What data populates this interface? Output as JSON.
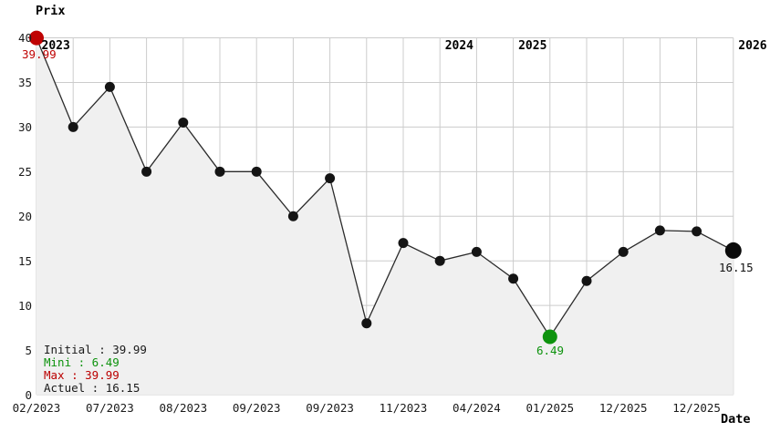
{
  "chart_data": {
    "type": "line",
    "title": "Prix",
    "xlabel": "Date",
    "ylabel": "Prix",
    "ylim": [
      0,
      40
    ],
    "y_ticks": [
      0,
      5,
      10,
      15,
      20,
      25,
      30,
      35,
      40
    ],
    "grid": true,
    "x_tick_labels": [
      {
        "index": 0,
        "label": "02/2023"
      },
      {
        "index": 2,
        "label": "07/2023"
      },
      {
        "index": 4,
        "label": "08/2023"
      },
      {
        "index": 6,
        "label": "09/2023"
      },
      {
        "index": 8,
        "label": "09/2023"
      },
      {
        "index": 10,
        "label": "11/2023"
      },
      {
        "index": 12,
        "label": "04/2024"
      },
      {
        "index": 14,
        "label": "01/2025"
      },
      {
        "index": 16,
        "label": "12/2025"
      },
      {
        "index": 18,
        "label": "12/2025"
      }
    ],
    "year_labels": [
      {
        "index": 0,
        "label": "2023"
      },
      {
        "index": 11,
        "label": "2024"
      },
      {
        "index": 13,
        "label": "2025"
      },
      {
        "index": 19,
        "label": "2026"
      }
    ],
    "values": [
      39.99,
      30,
      34.5,
      25,
      30.5,
      25,
      25,
      20,
      24.25,
      8,
      17,
      15,
      16,
      13,
      6.49,
      12.75,
      16,
      18.4,
      18.3,
      16.15
    ],
    "annotations": {
      "initial": "39.99",
      "min": "6.49",
      "current": "16.15"
    },
    "special_points": {
      "first_index": 0,
      "min_index": 14,
      "last_index": 19
    },
    "colors": {
      "initial_point": "#bf0303",
      "min_point": "#0e930e",
      "point": "#141414",
      "last_point": "#0a0a0a",
      "line": "#2b2b2b",
      "grid": "#cccccc",
      "fill": "#f0f0f0",
      "text": "#1a1a1a",
      "initial_text": "#bf0303",
      "min_text": "#0e930e",
      "max_text": "#bb0000"
    }
  },
  "legend": {
    "initial": "Initial : 39.99",
    "mini": "Mini : 6.49",
    "max": "Max : 39.99",
    "actuel": "Actuel : 16.15"
  }
}
